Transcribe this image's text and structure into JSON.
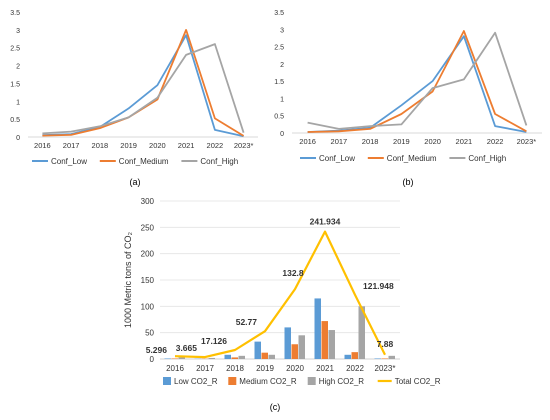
{
  "chart_data": [
    {
      "type": "line",
      "panel_label": "(a)",
      "categories": [
        "2016",
        "2017",
        "2018",
        "2019",
        "2020",
        "2021",
        "2022",
        "2023*"
      ],
      "ylim": [
        0,
        3.5
      ],
      "yticks": [
        "0",
        "0.5",
        "1",
        "1.5",
        "2",
        "2.5",
        "3",
        "3.5"
      ],
      "grid": false,
      "legend_position": "bottom",
      "series": [
        {
          "name": "Conf_Low",
          "color": "#5B9BD5",
          "values": [
            0.05,
            0.08,
            0.28,
            0.8,
            1.45,
            2.85,
            0.2,
            0.02
          ]
        },
        {
          "name": "Conf_Medium",
          "color": "#ED7D31",
          "values": [
            0.04,
            0.06,
            0.25,
            0.55,
            1.05,
            3.0,
            0.52,
            0.03
          ]
        },
        {
          "name": "Conf_High",
          "color": "#A5A5A5",
          "values": [
            0.1,
            0.15,
            0.3,
            0.55,
            1.1,
            2.3,
            2.6,
            0.12
          ]
        }
      ]
    },
    {
      "type": "line",
      "panel_label": "(b)",
      "categories": [
        "2016",
        "2017",
        "2018",
        "2019",
        "2020",
        "2021",
        "2022",
        "2023*"
      ],
      "ylim": [
        0,
        3.5
      ],
      "yticks": [
        "0",
        "0.5",
        "1",
        "1.5",
        "2",
        "2.5",
        "3",
        "3.5"
      ],
      "grid": false,
      "legend_position": "bottom",
      "series": [
        {
          "name": "Conf_Low",
          "color": "#5B9BD5",
          "values": [
            0.03,
            0.07,
            0.15,
            0.8,
            1.5,
            2.8,
            0.2,
            0.03
          ]
        },
        {
          "name": "Conf_Medium",
          "color": "#ED7D31",
          "values": [
            0.03,
            0.05,
            0.12,
            0.55,
            1.2,
            2.95,
            0.55,
            0.05
          ]
        },
        {
          "name": "Conf_High",
          "color": "#A5A5A5",
          "values": [
            0.3,
            0.12,
            0.2,
            0.25,
            1.3,
            1.55,
            2.9,
            0.22
          ]
        }
      ]
    },
    {
      "type": "bar+line",
      "panel_label": "(c)",
      "ylabel": "1000 Metric tons of CO₂",
      "categories": [
        "2016",
        "2017",
        "2018",
        "2019",
        "2020",
        "2021",
        "2022",
        "2023*"
      ],
      "ylim": [
        0,
        300
      ],
      "yticks": [
        "0",
        "50",
        "100",
        "150",
        "200",
        "250",
        "300"
      ],
      "grid": true,
      "legend_position": "bottom",
      "series": [
        {
          "name": "Low CO2_R",
          "kind": "bar",
          "color": "#5B9BD5",
          "values": [
            1,
            0.5,
            8,
            33,
            60,
            115,
            8,
            1
          ]
        },
        {
          "name": "Medium CO2_R",
          "kind": "bar",
          "color": "#ED7D31",
          "values": [
            1,
            0.5,
            3,
            12,
            28,
            72,
            13,
            1
          ]
        },
        {
          "name": "High CO2_R",
          "kind": "bar",
          "color": "#A5A5A5",
          "values": [
            3,
            2,
            6,
            8,
            45,
            55,
            100,
            6
          ]
        },
        {
          "name": "Total CO2_R",
          "kind": "line",
          "color": "#FFC000",
          "values": [
            5.296,
            3.665,
            17.126,
            52.77,
            132.8,
            241.934,
            121.948,
            7.88
          ]
        }
      ],
      "data_labels": [
        "5.296",
        "3.665",
        "17.126",
        "52.77",
        "132.8",
        "241.934",
        "121.948",
        "7.88"
      ]
    }
  ]
}
